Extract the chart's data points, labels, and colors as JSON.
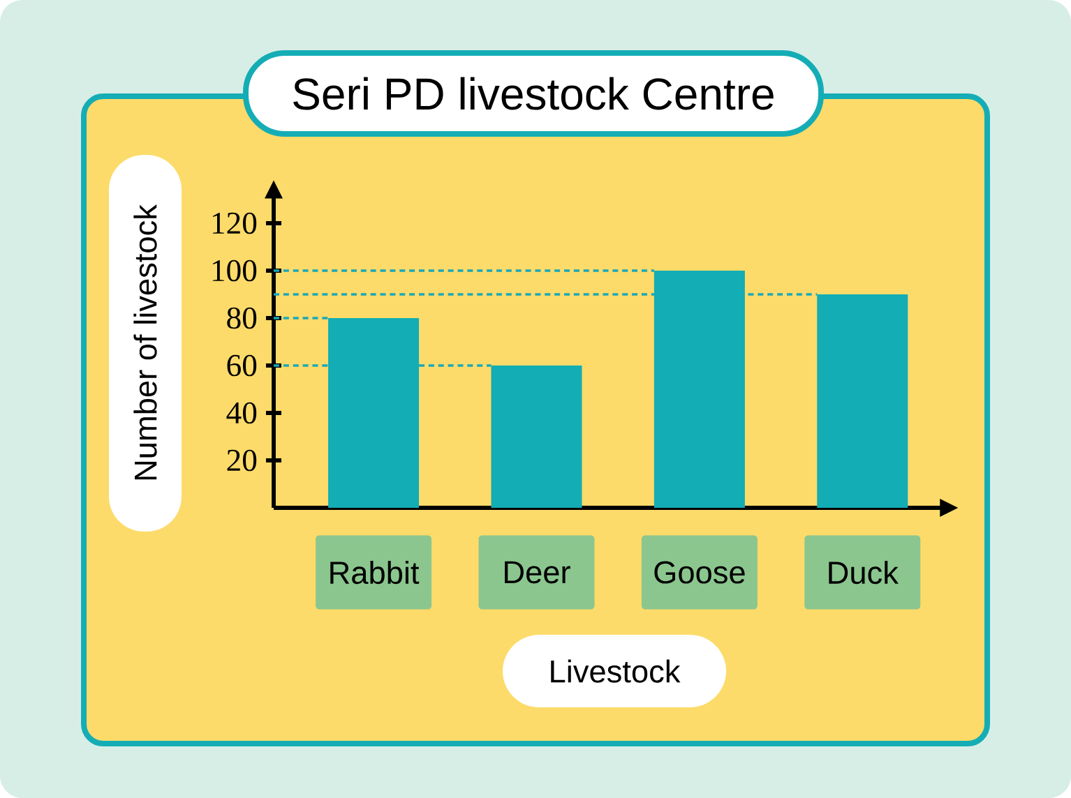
{
  "chart_data": {
    "type": "bar",
    "title": "Seri PD livestock Centre",
    "xlabel": "Livestock",
    "ylabel": "Number of livestock",
    "categories": [
      "Rabbit",
      "Deer",
      "Goose",
      "Duck"
    ],
    "values": [
      80,
      60,
      100,
      90
    ],
    "color": "#12adb5",
    "ylim": [
      0,
      131
    ],
    "yticks": [
      20,
      40,
      60,
      80,
      100,
      120
    ],
    "ref_lines": [
      {
        "axis": "y",
        "value": 100,
        "color": "#1aa8b8",
        "line_style": "dashed"
      },
      {
        "axis": "y",
        "value": 90,
        "color": "#1aa8b8",
        "line_style": "dashed"
      },
      {
        "axis": "y",
        "value": 80,
        "color": "#1aa8b8",
        "line_style": "dashed"
      },
      {
        "axis": "y",
        "value": 60,
        "color": "#1aa8b8",
        "line_style": "dashed"
      }
    ]
  }
}
